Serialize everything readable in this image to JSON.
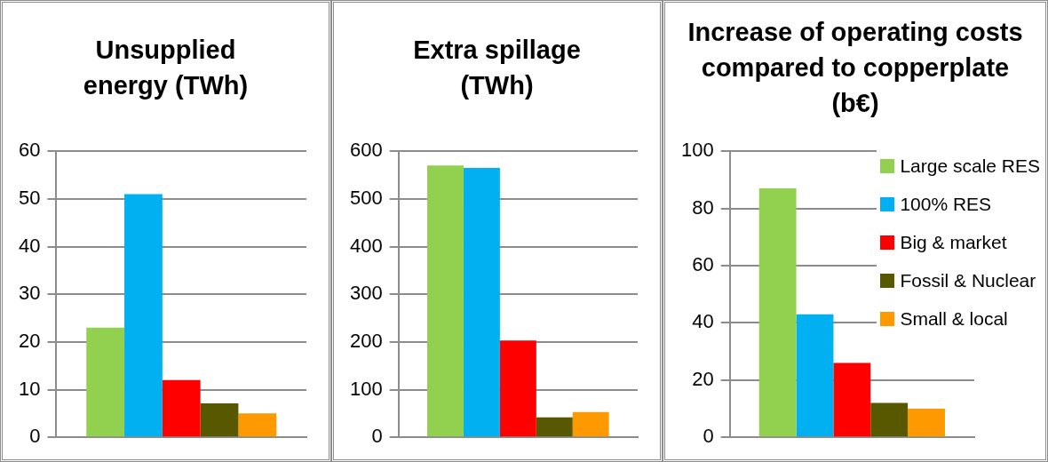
{
  "chart_data": [
    {
      "type": "bar",
      "title": "Unsupplied energy (TWh)",
      "categories": [
        null
      ],
      "series": [
        {
          "color": "#92d050",
          "values": [
            23
          ]
        },
        {
          "color": "#00b0f0",
          "values": [
            51
          ]
        },
        {
          "color": "#ff0000",
          "values": [
            12
          ]
        },
        {
          "color": "#585800",
          "values": [
            7.1
          ]
        },
        {
          "color": "#ff9900",
          "values": [
            5
          ]
        }
      ],
      "ylim": [
        0,
        60
      ],
      "yticks": [
        0,
        10,
        20,
        30,
        40,
        50,
        60
      ],
      "grid": "y"
    },
    {
      "type": "bar",
      "title": "Extra spillage (TWh)",
      "categories": [
        null
      ],
      "series": [
        {
          "color": "#92d050",
          "values": [
            570
          ]
        },
        {
          "color": "#00b0f0",
          "values": [
            565
          ]
        },
        {
          "color": "#ff0000",
          "values": [
            203
          ]
        },
        {
          "color": "#585800",
          "values": [
            42
          ]
        },
        {
          "color": "#ff9900",
          "values": [
            53
          ]
        }
      ],
      "ylim": [
        0,
        600
      ],
      "yticks": [
        0,
        100,
        200,
        300,
        400,
        500,
        600
      ],
      "grid": "y"
    },
    {
      "type": "bar",
      "title": "Increase of operating costs compared to copperplate (b€)",
      "categories": [
        null
      ],
      "series": [
        {
          "name": "Large scale RES",
          "color": "#92d050",
          "values": [
            87
          ]
        },
        {
          "name": "100% RES",
          "color": "#00b0f0",
          "values": [
            43
          ]
        },
        {
          "name": "Big & market",
          "color": "#ff0000",
          "values": [
            26
          ]
        },
        {
          "name": "Fossil & Nuclear",
          "color": "#585800",
          "values": [
            12
          ]
        },
        {
          "name": "Small & local",
          "color": "#ff9900",
          "values": [
            10
          ]
        }
      ],
      "ylim": [
        0,
        100
      ],
      "yticks": [
        0,
        20,
        40,
        60,
        80,
        100
      ],
      "grid": "y",
      "legend": "right"
    }
  ]
}
